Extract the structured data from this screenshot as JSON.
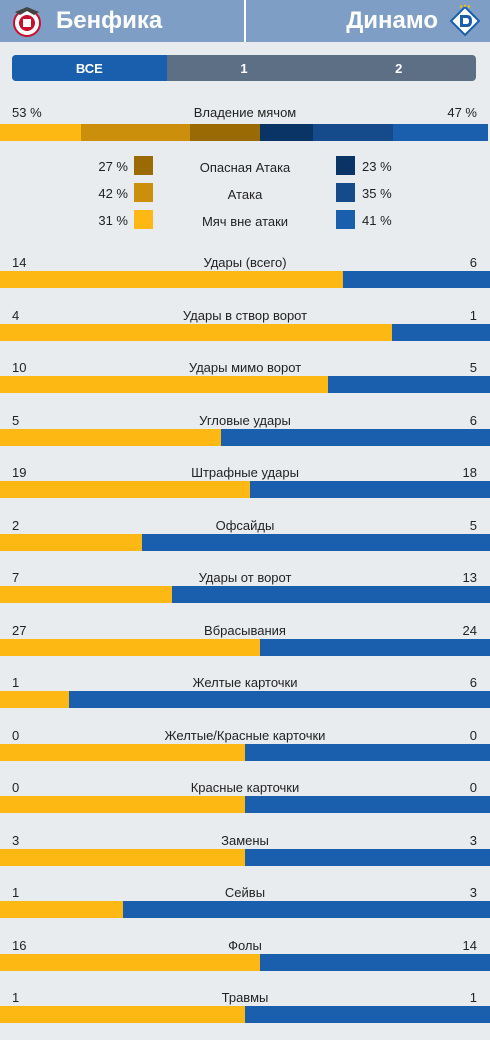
{
  "header": {
    "home_team": "Бенфика",
    "away_team": "Динамо",
    "home_logo_icon": "benfica-eagle-crest-icon",
    "away_logo_icon": "dynamo-d-crest-icon"
  },
  "tabs": [
    {
      "label": "ВСЕ",
      "active": true
    },
    {
      "label": "1",
      "active": false
    },
    {
      "label": "2",
      "active": false
    }
  ],
  "colors": {
    "home": "#fdb813",
    "away": "#1a5fae",
    "home_dangerous": "#9a6a05",
    "home_attack": "#cc8f0c",
    "home_safe": "#fdb813",
    "away_dangerous": "#0b3466",
    "away_attack": "#154a8b",
    "away_safe": "#1a5fae",
    "header_bg": "#7f9ec6",
    "tab_bg": "#5d6f85",
    "page_bg": "#e9ecef"
  },
  "possession": {
    "label": "Владение мячом",
    "home": "53 %",
    "away": "47 %",
    "home_value": 53,
    "away_value": 47,
    "home_bar": [
      0.31,
      0.42,
      0.27
    ],
    "away_bar": [
      0.23,
      0.35,
      0.41
    ]
  },
  "breakdown": [
    {
      "label": "Опасная Атака",
      "home": "27 %",
      "away": "23 %"
    },
    {
      "label": "Атака",
      "home": "42 %",
      "away": "35 %"
    },
    {
      "label": "Мяч вне атаки",
      "home": "31 %",
      "away": "41 %"
    }
  ],
  "stats": [
    {
      "label": "Удары (всего)",
      "home": "14",
      "away": "6",
      "home_share": 0.7
    },
    {
      "label": "Удары в створ ворот",
      "home": "4",
      "away": "1",
      "home_share": 0.8
    },
    {
      "label": "Удары мимо ворот",
      "home": "10",
      "away": "5",
      "home_share": 0.67
    },
    {
      "label": "Угловые удары",
      "home": "5",
      "away": "6",
      "home_share": 0.45
    },
    {
      "label": "Штрафные удары",
      "home": "19",
      "away": "18",
      "home_share": 0.51
    },
    {
      "label": "Офсайды",
      "home": "2",
      "away": "5",
      "home_share": 0.29
    },
    {
      "label": "Удары от ворот",
      "home": "7",
      "away": "13",
      "home_share": 0.35
    },
    {
      "label": "Вбрасывания",
      "home": "27",
      "away": "24",
      "home_share": 0.53
    },
    {
      "label": "Желтые карточки",
      "home": "1",
      "away": "6",
      "home_share": 0.14
    },
    {
      "label": "Желтые/Красные карточки",
      "home": "0",
      "away": "0",
      "home_share": 0.5
    },
    {
      "label": "Красные карточки",
      "home": "0",
      "away": "0",
      "home_share": 0.5
    },
    {
      "label": "Замены",
      "home": "3",
      "away": "3",
      "home_share": 0.5
    },
    {
      "label": "Сейвы",
      "home": "1",
      "away": "3",
      "home_share": 0.25
    },
    {
      "label": "Фолы",
      "home": "16",
      "away": "14",
      "home_share": 0.53
    },
    {
      "label": "Травмы",
      "home": "1",
      "away": "1",
      "home_share": 0.5
    }
  ]
}
